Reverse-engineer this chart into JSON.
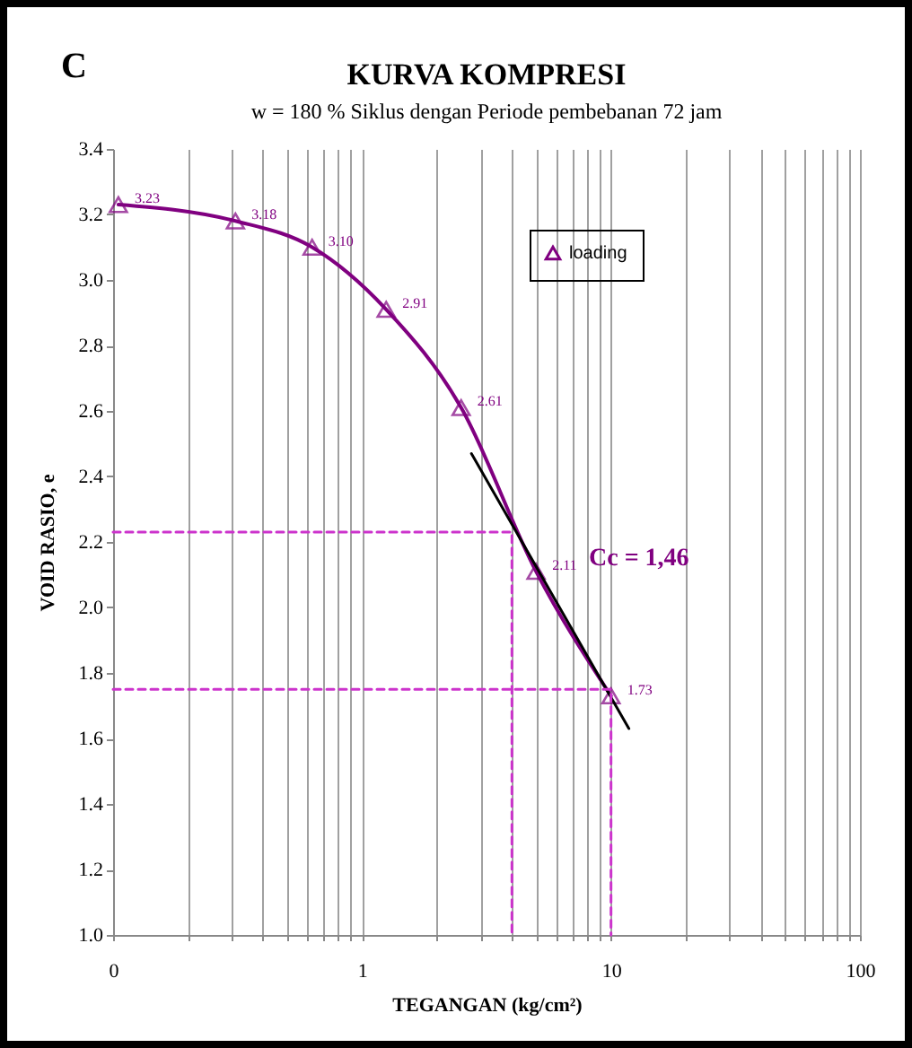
{
  "chart_data": {
    "type": "line",
    "title": "KURVA KOMPRESI",
    "subtitle": "w = 180 % Siklus dengan Periode pembebanan 72 jam",
    "xlabel": "TEGANGAN (kg/cm²)",
    "ylabel": "VOID RASIO, e",
    "annotations": [
      "C",
      "Cc = 1,46"
    ],
    "log": "x",
    "grid": "x",
    "legend": "top right",
    "xlim": [
      0.1,
      100
    ],
    "ylim": [
      1.0,
      3.4
    ],
    "xticks": [
      {
        "value": 0.1,
        "label": "0"
      },
      {
        "value": 0.2,
        "label": null
      },
      {
        "value": 0.3,
        "label": null
      },
      {
        "value": 0.4,
        "label": null
      },
      {
        "value": 0.5,
        "label": null
      },
      {
        "value": 0.6,
        "label": null
      },
      {
        "value": 0.7,
        "label": null
      },
      {
        "value": 0.8,
        "label": null
      },
      {
        "value": 0.9,
        "label": null
      },
      1,
      {
        "value": 2,
        "label": null
      },
      {
        "value": 3,
        "label": null
      },
      {
        "value": 4,
        "label": null
      },
      {
        "value": 5,
        "label": null
      },
      {
        "value": 6,
        "label": null
      },
      {
        "value": 7,
        "label": null
      },
      {
        "value": 8,
        "label": null
      },
      {
        "value": 9,
        "label": null
      },
      10,
      {
        "value": 20,
        "label": null
      },
      {
        "value": 30,
        "label": null
      },
      {
        "value": 40,
        "label": null
      },
      {
        "value": 50,
        "label": null
      },
      {
        "value": 60,
        "label": null
      },
      {
        "value": 70,
        "label": null
      },
      {
        "value": 80,
        "label": null
      },
      {
        "value": 90,
        "label": null
      },
      100
    ],
    "yticks": [
      {
        "value": 1,
        "label": "1.0"
      },
      1.2,
      1.4,
      1.6,
      1.8,
      {
        "value": 2,
        "label": "2.0"
      },
      2.2,
      2.4,
      2.6,
      2.8,
      {
        "value": 3,
        "label": "3.0"
      },
      3.2,
      3.4
    ],
    "series": [
      {
        "name": "loading",
        "color": "#800080",
        "marker": "triangle",
        "line_style": "solid",
        "x": [
          0.105,
          0.31,
          0.63,
          1.25,
          2.5,
          5,
          10
        ],
        "values": [
          3.23,
          3.18,
          3.1,
          2.91,
          2.61,
          2.11,
          1.73
        ],
        "value_labels": [
          "3.23",
          "3.18",
          "3.10",
          "2.91",
          "2.61",
          "2.11",
          "1.73"
        ]
      },
      {
        "type": "line",
        "color": "#000000",
        "marker": "none",
        "line_style": "solid",
        "x": [
          2.75,
          11.8
        ],
        "values": [
          2.47,
          1.63
        ]
      },
      {
        "type": "line",
        "color": "#cc33cc",
        "marker": "none",
        "line_style": "dashed",
        "x": [
          0.1,
          4,
          4
        ],
        "values": [
          2.23,
          2.23,
          1.0
        ]
      },
      {
        "type": "line",
        "color": "#cc33cc",
        "marker": "none",
        "line_style": "dashed",
        "x": [
          0.1,
          10,
          10
        ],
        "values": [
          1.75,
          1.75,
          1.0
        ]
      }
    ]
  }
}
